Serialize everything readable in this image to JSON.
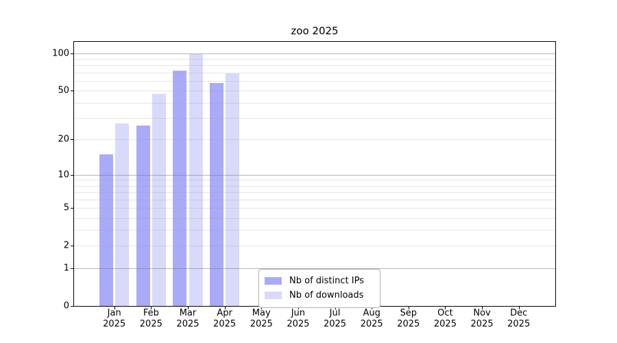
{
  "title": "zoo 2025",
  "chart_data": {
    "type": "bar",
    "title": "zoo 2025",
    "categories": [
      "Jan",
      "Feb",
      "Mar",
      "Apr",
      "May",
      "Jun",
      "Jul",
      "Aug",
      "Sep",
      "Oct",
      "Nov",
      "Dec"
    ],
    "x_year": "2025",
    "series": [
      {
        "name": "Nb of distinct IPs",
        "color": "#aaaafa",
        "values": [
          15,
          26,
          73,
          58,
          0,
          0,
          0,
          0,
          0,
          0,
          0,
          0
        ]
      },
      {
        "name": "Nb of downloads",
        "color": "#d9d9fa",
        "values": [
          27,
          47,
          99,
          69,
          0,
          0,
          0,
          0,
          0,
          0,
          0,
          0
        ]
      }
    ],
    "yscale": "log1p",
    "ylim": [
      0,
      124
    ],
    "y_tick_values": [
      0,
      1,
      2,
      5,
      10,
      20,
      50,
      100
    ],
    "y_tick_labels": [
      "0",
      "1",
      "2",
      "5",
      "10",
      "20",
      "50",
      "100"
    ],
    "y_major_gridlines": [
      1,
      10,
      100
    ],
    "y_minor_gridlines": [
      2,
      3,
      4,
      5,
      6,
      7,
      8,
      9,
      20,
      30,
      40,
      50,
      60,
      70,
      80,
      90
    ],
    "grid": "horizontal",
    "legend_position": "lower center",
    "background_color": "#ffffff",
    "axis_color": "#000000"
  },
  "legend": {
    "items": [
      {
        "label": "Nb of distinct IPs",
        "color": "#aaaafa"
      },
      {
        "label": "Nb of downloads",
        "color": "#d9d9fa"
      }
    ]
  }
}
